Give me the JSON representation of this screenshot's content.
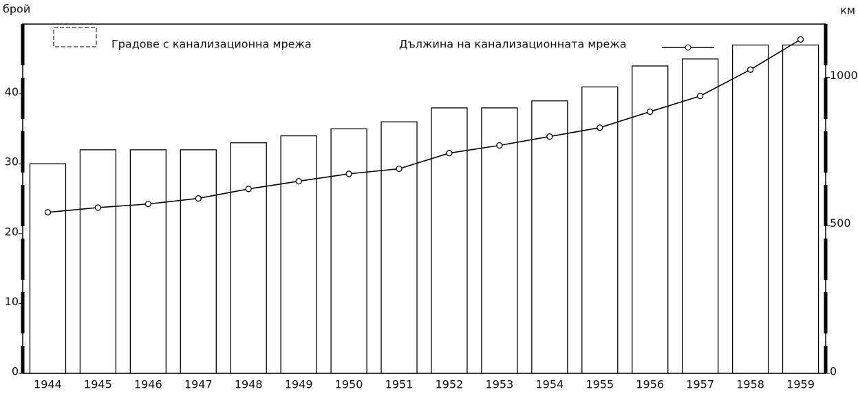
{
  "chart_data": {
    "type": "bar",
    "ylabel": "брой",
    "y2label": "км",
    "categories": [
      "1944",
      "1945",
      "1946",
      "1947",
      "1948",
      "1949",
      "1950",
      "1951",
      "1952",
      "1953",
      "1954",
      "1955",
      "1956",
      "1957",
      "1958",
      "1959"
    ],
    "series": [
      {
        "name": "Градове с канализационна мрежа",
        "type": "bar",
        "color": "#ffffff",
        "values": [
          30,
          32,
          32,
          32,
          33,
          34,
          35,
          36,
          38,
          38,
          39,
          41,
          44,
          45,
          47,
          47
        ]
      },
      {
        "name": "Дължина на канализационната мрежа",
        "type": "line",
        "axis": "y2",
        "color": "#000000",
        "values": [
          544,
          560,
          572,
          591,
          623,
          649,
          674,
          691,
          744,
          770,
          800,
          830,
          884,
          937,
          1026,
          1128
        ]
      }
    ],
    "ylim": [
      0,
      50
    ],
    "yticks": [
      0,
      10,
      20,
      30,
      40
    ],
    "y2lim": [
      0,
      1180
    ],
    "y2ticks": [
      0,
      500,
      1000
    ]
  }
}
